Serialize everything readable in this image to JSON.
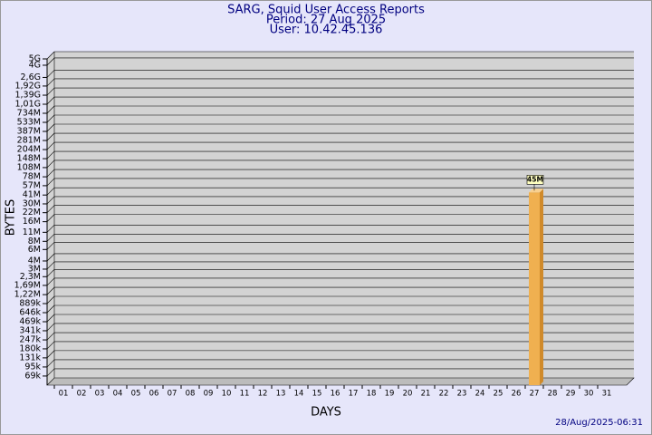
{
  "chart_data": {
    "type": "bar",
    "title": "SARG, Squid User Access Reports",
    "subtitle": "Period: 27 Aug 2025",
    "user": "User: 10.42.45.136",
    "y_label": "BYTES",
    "x_label": "DAYS",
    "timestamp": "28/Aug/2025-06:31",
    "categories": [
      "01",
      "02",
      "03",
      "04",
      "05",
      "06",
      "07",
      "08",
      "09",
      "10",
      "11",
      "12",
      "13",
      "14",
      "15",
      "16",
      "17",
      "18",
      "19",
      "20",
      "21",
      "22",
      "23",
      "24",
      "25",
      "26",
      "27",
      "28",
      "29",
      "30",
      "31"
    ],
    "values": [
      null,
      null,
      null,
      null,
      null,
      null,
      null,
      null,
      null,
      null,
      null,
      null,
      null,
      null,
      null,
      null,
      null,
      null,
      null,
      null,
      null,
      null,
      null,
      null,
      null,
      null,
      45000000,
      null,
      null,
      null,
      null
    ],
    "value_labels": [
      null,
      null,
      null,
      null,
      null,
      null,
      null,
      null,
      null,
      null,
      null,
      null,
      null,
      null,
      null,
      null,
      null,
      null,
      null,
      null,
      null,
      null,
      null,
      null,
      null,
      null,
      "45M",
      null,
      null,
      null,
      null
    ],
    "color": "#f0b050",
    "log_scale": true,
    "grid": true,
    "ylim": [
      50000,
      5000000000
    ],
    "yticks": [
      {
        "value": 69000,
        "label": "69k"
      },
      {
        "value": 95000,
        "label": "95k"
      },
      {
        "value": 131000,
        "label": "131k"
      },
      {
        "value": 180000,
        "label": "180k"
      },
      {
        "value": 247000,
        "label": "247k"
      },
      {
        "value": 341000,
        "label": "341k"
      },
      {
        "value": 469000,
        "label": "469k"
      },
      {
        "value": 646000,
        "label": "646k"
      },
      {
        "value": 889000,
        "label": "889k"
      },
      {
        "value": 1220000,
        "label": "1,22M"
      },
      {
        "value": 1690000,
        "label": "1,69M"
      },
      {
        "value": 2300000,
        "label": "2,3M"
      },
      {
        "value": 3000000,
        "label": "3M"
      },
      {
        "value": 4000000,
        "label": "4M"
      },
      {
        "value": 6000000,
        "label": "6M"
      },
      {
        "value": 8000000,
        "label": "8M"
      },
      {
        "value": 11000000,
        "label": "11M"
      },
      {
        "value": 16000000,
        "label": "16M"
      },
      {
        "value": 22000000,
        "label": "22M"
      },
      {
        "value": 30000000,
        "label": "30M"
      },
      {
        "value": 41000000,
        "label": "41M"
      },
      {
        "value": 57000000,
        "label": "57M"
      },
      {
        "value": 78000000,
        "label": "78M"
      },
      {
        "value": 108000000,
        "label": "108M"
      },
      {
        "value": 148000000,
        "label": "148M"
      },
      {
        "value": 204000000,
        "label": "204M"
      },
      {
        "value": 281000000,
        "label": "281M"
      },
      {
        "value": 387000000,
        "label": "387M"
      },
      {
        "value": 533000000,
        "label": "533M"
      },
      {
        "value": 734000000,
        "label": "734M"
      },
      {
        "value": 1010000000,
        "label": "1,01G"
      },
      {
        "value": 1390000000,
        "label": "1,39G"
      },
      {
        "value": 1920000000,
        "label": "1,92G"
      },
      {
        "value": 2600000000,
        "label": "2,6G"
      },
      {
        "value": 4000000000,
        "label": "4G"
      },
      {
        "value": 5000000000,
        "label": "5G"
      }
    ]
  }
}
